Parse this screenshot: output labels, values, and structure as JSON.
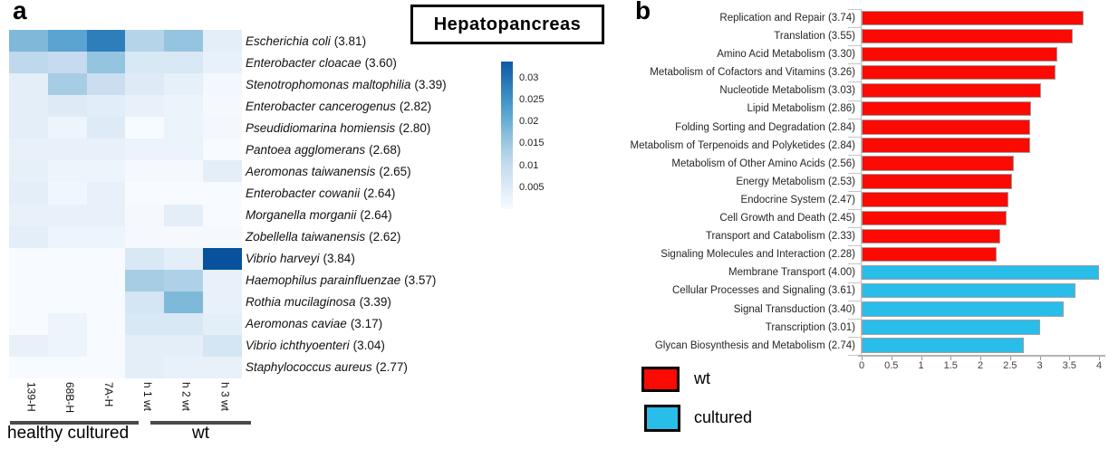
{
  "panel_a": {
    "label": "a",
    "title": "Hepatopancreas",
    "groups": [
      {
        "label": "healthy cultured"
      },
      {
        "label": "wt"
      }
    ]
  },
  "panel_b": {
    "label": "b"
  },
  "legend": {
    "items": [
      {
        "label": "wt",
        "color": "#fa0a00"
      },
      {
        "label": "cultured",
        "color": "#29bdea"
      }
    ]
  },
  "colors": {
    "bar_red": "#fa0a00",
    "bar_blue": "#29bdea",
    "bar_border": "#a0a0a0",
    "group_line": "#4a4a4a"
  },
  "chart_data": [
    {
      "type": "heatmap",
      "title": "Hepatopancreas",
      "colormap": "Blues",
      "vmin": 0,
      "vmax": 0.04,
      "colorbar_top_value": 0.0337,
      "colorbar_ticks": [
        0.03,
        0.025,
        0.02,
        0.015,
        0.01,
        0.005
      ],
      "columns": [
        "139-H",
        "68B-H",
        "7A-H",
        "h 1 wt",
        "h 2 wt",
        "h 3 wt"
      ],
      "column_groups": [
        {
          "label": "healthy cultured",
          "columns": [
            "139-H",
            "68B-H",
            "7A-H"
          ]
        },
        {
          "label": "wt",
          "columns": [
            "h 1 wt",
            "h 2 wt",
            "h 3 wt"
          ]
        }
      ],
      "rows": [
        {
          "species": "Escherichia coli",
          "score": 3.81,
          "values": [
            0.018,
            0.022,
            0.028,
            0.012,
            0.016,
            0.004
          ]
        },
        {
          "species": "Enterobacter cloacae",
          "score": 3.6,
          "values": [
            0.011,
            0.01,
            0.016,
            0.006,
            0.006,
            0.003
          ]
        },
        {
          "species": "Stenotrophomonas maltophilia",
          "score": 3.39,
          "values": [
            0.004,
            0.014,
            0.009,
            0.005,
            0.0035,
            0.001
          ]
        },
        {
          "species": "Enterobacter cancerogenus",
          "score": 2.82,
          "values": [
            0.004,
            0.005,
            0.0045,
            0.003,
            0.0025,
            0.0005
          ]
        },
        {
          "species": "Pseudidiomarina homiensis",
          "score": 2.8,
          "values": [
            0.004,
            0.002,
            0.005,
            0.0,
            0.0025,
            0.001
          ]
        },
        {
          "species": "Pantoea agglomerans",
          "score": 2.68,
          "values": [
            0.003,
            0.003,
            0.003,
            0.0025,
            0.0025,
            0.0
          ]
        },
        {
          "species": "Aeromonas taiwanensis",
          "score": 2.65,
          "values": [
            0.0035,
            0.002,
            0.002,
            0.0005,
            0.0005,
            0.004
          ]
        },
        {
          "species": "Enterobacter cowanii",
          "score": 2.64,
          "values": [
            0.004,
            0.0015,
            0.003,
            0.0,
            0.0,
            0.0
          ]
        },
        {
          "species": "Morganella morganii",
          "score": 2.64,
          "values": [
            0.003,
            0.003,
            0.003,
            0.0005,
            0.004,
            0.0
          ]
        },
        {
          "species": "Zobellella taiwanensis",
          "score": 2.62,
          "values": [
            0.004,
            0.002,
            0.002,
            0.0005,
            0.0005,
            0.0005
          ]
        },
        {
          "species": "Vibrio harveyi",
          "score": 3.84,
          "values": [
            0.0,
            0.0,
            0.0,
            0.006,
            0.004,
            0.035
          ]
        },
        {
          "species": "Haemophilus parainfluenzae",
          "score": 3.57,
          "values": [
            0.0,
            0.0,
            0.0,
            0.014,
            0.013,
            0.003
          ]
        },
        {
          "species": "Rothia mucilaginosa",
          "score": 3.39,
          "values": [
            0.0,
            0.0,
            0.0,
            0.007,
            0.018,
            0.003
          ]
        },
        {
          "species": "Aeromonas caviae",
          "score": 3.17,
          "values": [
            0.0,
            0.002,
            0.0,
            0.006,
            0.006,
            0.004
          ]
        },
        {
          "species": "Vibrio ichthyoenteri",
          "score": 3.04,
          "values": [
            0.003,
            0.002,
            0.0,
            0.004,
            0.004,
            0.007
          ]
        },
        {
          "species": "Staphylococcus aureus",
          "score": 2.77,
          "values": [
            0.0,
            0.0,
            0.0,
            0.004,
            0.003,
            0.003
          ]
        }
      ]
    },
    {
      "type": "bar",
      "orientation": "horizontal",
      "xlim": [
        0,
        4
      ],
      "xticks": [
        0,
        0.5,
        1,
        1.5,
        2,
        2.5,
        3,
        3.5,
        4
      ],
      "grid": false,
      "legend_position": "bottom-left",
      "group_colors": {
        "wt": "#fa0a00",
        "cultured": "#29bdea"
      },
      "bars": [
        {
          "category": "Replication and Repair",
          "value": 3.74,
          "group": "wt"
        },
        {
          "category": "Translation",
          "value": 3.55,
          "group": "wt"
        },
        {
          "category": "Amino Acid Metabolism",
          "value": 3.3,
          "group": "wt"
        },
        {
          "category": "Metabolism of Cofactors and Vitamins",
          "value": 3.26,
          "group": "wt"
        },
        {
          "category": "Nucleotide Metabolism",
          "value": 3.03,
          "group": "wt"
        },
        {
          "category": "Lipid Metabolism",
          "value": 2.86,
          "group": "wt"
        },
        {
          "category": "Folding Sorting and Degradation",
          "value": 2.84,
          "group": "wt"
        },
        {
          "category": "Metabolism of Terpenoids and Polyketides",
          "value": 2.84,
          "group": "wt"
        },
        {
          "category": "Metabolism of Other Amino Acids",
          "value": 2.56,
          "group": "wt"
        },
        {
          "category": "Energy Metabolism",
          "value": 2.53,
          "group": "wt"
        },
        {
          "category": "Endocrine System",
          "value": 2.47,
          "group": "wt"
        },
        {
          "category": "Cell Growth and Death",
          "value": 2.45,
          "group": "wt"
        },
        {
          "category": "Transport and Catabolism",
          "value": 2.33,
          "group": "wt"
        },
        {
          "category": "Signaling Molecules and Interaction",
          "value": 2.28,
          "group": "wt"
        },
        {
          "category": "Membrane Transport",
          "value": 4.0,
          "group": "cultured"
        },
        {
          "category": "Cellular Processes and Signaling",
          "value": 3.61,
          "group": "cultured"
        },
        {
          "category": "Signal Transduction",
          "value": 3.4,
          "group": "cultured"
        },
        {
          "category": "Transcription",
          "value": 3.01,
          "group": "cultured"
        },
        {
          "category": "Glycan Biosynthesis and Metabolism",
          "value": 2.74,
          "group": "cultured"
        }
      ]
    }
  ]
}
